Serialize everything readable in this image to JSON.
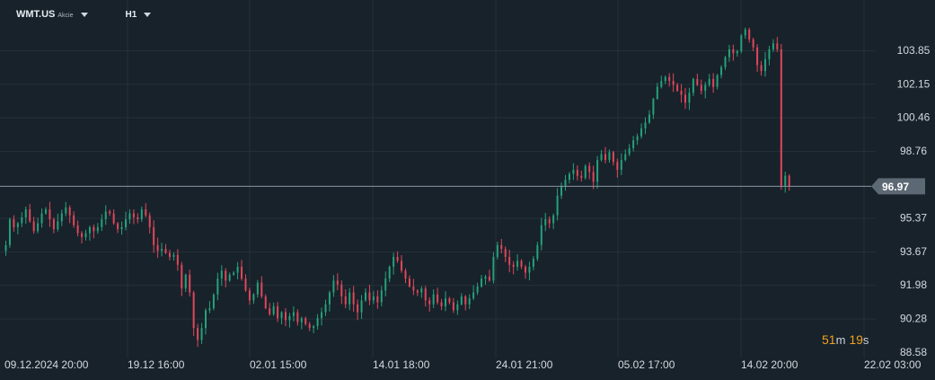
{
  "toolbar": {
    "symbol": "WMT.US",
    "instrument_type": "Akcie",
    "symbol_dropdown_icon": "chevron-down-icon",
    "timeframe": "H1",
    "timeframe_dropdown_icon": "chevron-down-icon"
  },
  "countdown": {
    "minutes": "51",
    "minutes_unit": "m",
    "seconds": "19",
    "seconds_unit": "s"
  },
  "colors": {
    "background": "#18222b",
    "grid": "#243039",
    "up": "#26a17b",
    "down": "#e0475a",
    "current_line": "#8a97a3",
    "current_tag": "#5c6873",
    "axis_text": "#d3d9df",
    "countdown": "#f0a020"
  },
  "chart_data": {
    "type": "candlestick",
    "timeframe": "H1",
    "y_ticks": [
      "103.85",
      "102.15",
      "100.46",
      "98.76",
      "95.37",
      "93.67",
      "91.98",
      "90.28",
      "88.58"
    ],
    "ylim": [
      88.58,
      105.5
    ],
    "current_price": "96.97",
    "x_ticks": [
      "09.12.2024 20:00",
      "19.12 16:00",
      "02.01 15:00",
      "14.01 18:00",
      "24.01 21:00",
      "05.02 17:00",
      "14.02 20:00",
      "22.02 03:00"
    ],
    "grid": true,
    "closes": [
      94.0,
      95.3,
      94.9,
      95.1,
      95.4,
      95.8,
      95.2,
      94.7,
      95.1,
      95.6,
      95.8,
      95.3,
      94.8,
      95.2,
      95.6,
      95.9,
      95.5,
      95.0,
      94.6,
      94.4,
      94.6,
      94.9,
      94.7,
      94.9,
      95.3,
      95.7,
      95.6,
      95.1,
      94.8,
      94.9,
      95.3,
      95.6,
      95.4,
      95.3,
      95.8,
      95.5,
      94.9,
      94.0,
      93.7,
      93.8,
      93.6,
      93.4,
      93.5,
      93.0,
      91.8,
      92.5,
      91.6,
      89.8,
      89.2,
      89.8,
      90.7,
      90.8,
      91.5,
      92.3,
      92.7,
      92.2,
      92.5,
      92.6,
      92.9,
      92.3,
      91.7,
      91.2,
      91.5,
      92.1,
      91.4,
      90.8,
      90.5,
      90.9,
      90.3,
      90.6,
      90.2,
      90.4,
      90.6,
      90.1,
      90.3,
      90.0,
      89.8,
      89.9,
      90.3,
      90.6,
      91.0,
      91.6,
      92.2,
      92.0,
      91.4,
      91.0,
      91.6,
      91.0,
      90.6,
      91.2,
      91.6,
      91.2,
      91.4,
      91.1,
      91.7,
      92.3,
      92.9,
      93.4,
      93.2,
      92.7,
      92.3,
      91.9,
      91.7,
      91.6,
      91.8,
      91.2,
      91.0,
      91.5,
      91.1,
      90.9,
      91.3,
      91.1,
      90.7,
      91.0,
      91.4,
      91.0,
      91.3,
      91.6,
      91.9,
      92.3,
      92.4,
      92.2,
      93.4,
      94.0,
      93.8,
      93.4,
      93.0,
      92.9,
      93.2,
      92.9,
      92.6,
      92.9,
      93.3,
      94.0,
      95.0,
      95.3,
      95.1,
      95.5,
      96.5,
      97.0,
      97.3,
      97.6,
      97.8,
      97.5,
      97.4,
      98.0,
      97.7,
      97.2,
      98.3,
      98.6,
      98.3,
      98.7,
      98.2,
      97.8,
      98.3,
      98.6,
      98.9,
      99.3,
      99.5,
      99.9,
      100.2,
      100.6,
      101.4,
      102.0,
      102.3,
      102.5,
      102.3,
      102.1,
      101.8,
      101.6,
      101.2,
      101.7,
      102.4,
      102.1,
      101.8,
      102.1,
      102.4,
      102.0,
      102.6,
      103.0,
      103.5,
      103.9,
      103.7,
      103.8,
      104.6,
      104.9,
      104.4,
      104.0,
      103.1,
      102.8,
      103.4,
      103.9,
      104.2,
      103.9,
      97.0,
      97.5,
      96.97
    ],
    "gap_after_index": 203,
    "first_open_after_gap": 100.1
  }
}
